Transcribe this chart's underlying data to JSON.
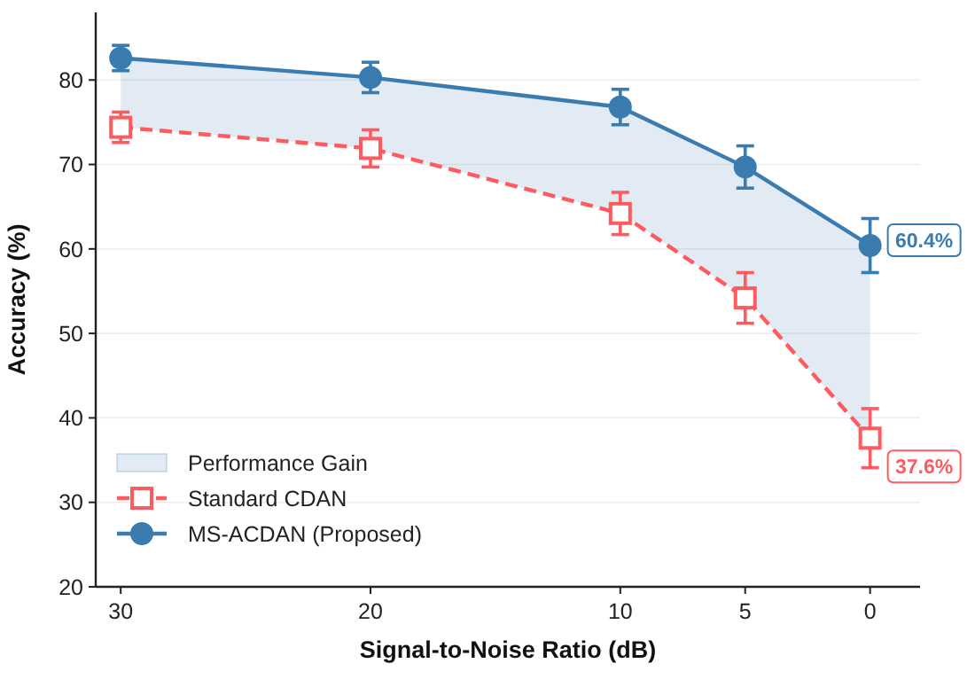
{
  "chart_data": {
    "type": "line",
    "xlabel": "Signal-to-Noise Ratio (dB)",
    "ylabel": "Accuracy (%)",
    "x": [
      30,
      20,
      10,
      5,
      0
    ],
    "xlim": [
      31,
      -2
    ],
    "xticks": [
      30,
      20,
      10,
      5,
      0
    ],
    "ylim": [
      20,
      88
    ],
    "yticks": [
      20,
      30,
      40,
      50,
      60,
      70,
      80
    ],
    "grid": "y",
    "legend": "bottom left",
    "series": [
      {
        "name": "Standard CDAN",
        "color": "#ff5a5f",
        "marker": "square",
        "line_style": "dashed",
        "values": [
          74.4,
          71.9,
          64.2,
          54.2,
          37.6
        ],
        "errors": [
          1.8,
          2.2,
          2.5,
          3,
          3.5
        ]
      },
      {
        "name": "MS-ACDAN (Proposed)",
        "color": "#3a7cb0",
        "marker": "circle",
        "line_style": "solid",
        "values": [
          82.6,
          80.3,
          76.8,
          69.7,
          60.4
        ],
        "errors": [
          1.5,
          1.8,
          2.1,
          2.5,
          3.2
        ],
        "lower": [
          74.4,
          71.9,
          64.2,
          54.2,
          37.6
        ],
        "upper": [
          82.6,
          80.3,
          76.8,
          69.7,
          60.4
        ]
      }
    ],
    "annotations": [
      "Performance Gain",
      {
        "text": "60.4%",
        "x": 0,
        "y": 60.4
      },
      {
        "text": "37.6%",
        "x": 0,
        "y": 37.6
      }
    ]
  }
}
